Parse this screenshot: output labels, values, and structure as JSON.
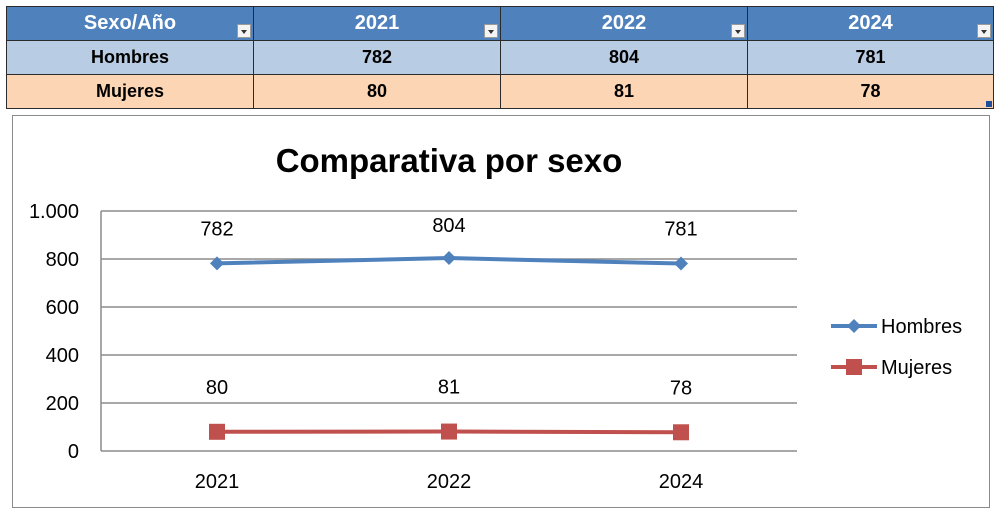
{
  "table": {
    "headers": [
      "Sexo/Año",
      "2021",
      "2022",
      "2024"
    ],
    "rows": [
      {
        "label": "Hombres",
        "values": [
          "782",
          "804",
          "781"
        ]
      },
      {
        "label": "Mujeres",
        "values": [
          "80",
          "81",
          "78"
        ]
      }
    ]
  },
  "chart_data": {
    "type": "line",
    "title": "Comparativa por sexo",
    "categories": [
      "2021",
      "2022",
      "2024"
    ],
    "series": [
      {
        "name": "Hombres",
        "values": [
          782,
          804,
          781
        ],
        "color": "#4f81bd",
        "marker": "diamond"
      },
      {
        "name": "Mujeres",
        "values": [
          80,
          81,
          78
        ],
        "color": "#c0504d",
        "marker": "square"
      }
    ],
    "ylim": [
      0,
      1000
    ],
    "yticks": [
      0,
      200,
      400,
      600,
      800,
      1000
    ],
    "ytick_labels": [
      "0",
      "200",
      "400",
      "600",
      "800",
      "1.000"
    ],
    "xlabel": "",
    "ylabel": "",
    "grid": true,
    "legend_position": "right",
    "data_labels": true
  }
}
